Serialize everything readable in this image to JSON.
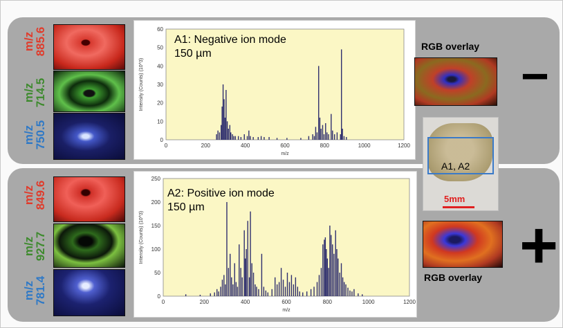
{
  "colors": {
    "red": "#e03c2c",
    "green": "#3e8a2e",
    "blue": "#2f79c6",
    "panel": "#a9a9a9",
    "plot_bg": "#fbf7c5",
    "bar": "#2e2e6e"
  },
  "top": {
    "sign": "−",
    "overlay_label": "RGB overlay",
    "ions": [
      {
        "prefix": "m/z",
        "value": "885.6",
        "color": "red"
      },
      {
        "prefix": "m/z",
        "value": "714.5",
        "color": "green"
      },
      {
        "prefix": "m/z",
        "value": "750.5",
        "color": "blue"
      }
    ],
    "chart_data": {
      "type": "bar",
      "title": "A1: Negative ion mode",
      "subtitle": "150 µm",
      "xlabel": "m/z",
      "ylabel": "Intensity (Counts) (10^3)",
      "xlim": [
        0,
        1200
      ],
      "ylim": [
        0,
        60
      ],
      "xticks": [
        "0",
        "200",
        "400",
        "600",
        "800",
        "1000",
        "1200"
      ],
      "yticks": [
        "0",
        "10",
        "20",
        "30",
        "40",
        "50",
        "60"
      ],
      "peaks": [
        [
          255,
          3
        ],
        [
          262,
          5
        ],
        [
          270,
          4
        ],
        [
          278,
          8
        ],
        [
          283,
          18
        ],
        [
          288,
          30
        ],
        [
          293,
          22
        ],
        [
          298,
          12
        ],
        [
          303,
          27
        ],
        [
          309,
          10
        ],
        [
          315,
          6
        ],
        [
          322,
          8
        ],
        [
          327,
          4
        ],
        [
          335,
          3
        ],
        [
          342,
          2
        ],
        [
          350,
          2
        ],
        [
          365,
          2
        ],
        [
          378,
          1.5
        ],
        [
          395,
          3
        ],
        [
          410,
          2
        ],
        [
          418,
          5
        ],
        [
          425,
          2
        ],
        [
          440,
          1.5
        ],
        [
          465,
          1.5
        ],
        [
          480,
          2
        ],
        [
          495,
          1.5
        ],
        [
          520,
          1.5
        ],
        [
          560,
          1
        ],
        [
          610,
          1
        ],
        [
          680,
          1
        ],
        [
          720,
          2
        ],
        [
          740,
          3
        ],
        [
          748,
          2
        ],
        [
          755,
          7
        ],
        [
          762,
          4
        ],
        [
          770,
          40
        ],
        [
          776,
          12
        ],
        [
          782,
          6
        ],
        [
          790,
          8
        ],
        [
          797,
          3
        ],
        [
          805,
          9
        ],
        [
          812,
          4
        ],
        [
          820,
          3
        ],
        [
          833,
          14
        ],
        [
          840,
          5
        ],
        [
          850,
          3
        ],
        [
          863,
          4
        ],
        [
          880,
          3
        ],
        [
          885,
          49
        ],
        [
          890,
          6
        ],
        [
          898,
          2
        ],
        [
          910,
          1.5
        ]
      ]
    }
  },
  "bottom": {
    "sign": "+",
    "overlay_label": "RGB overlay",
    "ions": [
      {
        "prefix": "m/z",
        "value": "849.6",
        "color": "red"
      },
      {
        "prefix": "m/z",
        "value": "927.7",
        "color": "green"
      },
      {
        "prefix": "m/z",
        "value": "781.4",
        "color": "blue"
      }
    ],
    "chart_data": {
      "type": "bar",
      "title": "A2: Positive ion mode",
      "subtitle": "150 µm",
      "xlabel": "m/z",
      "ylabel": "Intensity (Counts) (10^3)",
      "xlim": [
        0,
        1200
      ],
      "ylim": [
        0,
        250
      ],
      "xticks": [
        "0",
        "200",
        "400",
        "600",
        "800",
        "1000",
        "1200"
      ],
      "yticks": [
        "0",
        "50",
        "100",
        "150",
        "200",
        "250"
      ],
      "peaks": [
        [
          110,
          4
        ],
        [
          180,
          3
        ],
        [
          230,
          6
        ],
        [
          250,
          8
        ],
        [
          262,
          15
        ],
        [
          270,
          10
        ],
        [
          280,
          20
        ],
        [
          288,
          35
        ],
        [
          296,
          45
        ],
        [
          303,
          25
        ],
        [
          310,
          200
        ],
        [
          318,
          60
        ],
        [
          326,
          90
        ],
        [
          333,
          40
        ],
        [
          340,
          25
        ],
        [
          348,
          70
        ],
        [
          355,
          30
        ],
        [
          362,
          20
        ],
        [
          370,
          110
        ],
        [
          378,
          60
        ],
        [
          385,
          40
        ],
        [
          395,
          140
        ],
        [
          400,
          80
        ],
        [
          405,
          100
        ],
        [
          412,
          160
        ],
        [
          420,
          40
        ],
        [
          425,
          180
        ],
        [
          432,
          70
        ],
        [
          440,
          50
        ],
        [
          448,
          25
        ],
        [
          455,
          20
        ],
        [
          465,
          15
        ],
        [
          480,
          90
        ],
        [
          490,
          20
        ],
        [
          500,
          12
        ],
        [
          510,
          8
        ],
        [
          530,
          15
        ],
        [
          545,
          40
        ],
        [
          555,
          25
        ],
        [
          565,
          30
        ],
        [
          575,
          60
        ],
        [
          585,
          35
        ],
        [
          595,
          20
        ],
        [
          605,
          50
        ],
        [
          615,
          30
        ],
        [
          625,
          45
        ],
        [
          635,
          25
        ],
        [
          645,
          40
        ],
        [
          655,
          20
        ],
        [
          665,
          10
        ],
        [
          680,
          8
        ],
        [
          700,
          10
        ],
        [
          720,
          15
        ],
        [
          735,
          20
        ],
        [
          750,
          30
        ],
        [
          760,
          45
        ],
        [
          770,
          60
        ],
        [
          778,
          110
        ],
        [
          785,
          120
        ],
        [
          790,
          125
        ],
        [
          795,
          100
        ],
        [
          800,
          80
        ],
        [
          806,
          60
        ],
        [
          812,
          150
        ],
        [
          818,
          130
        ],
        [
          825,
          110
        ],
        [
          832,
          90
        ],
        [
          840,
          140
        ],
        [
          846,
          100
        ],
        [
          852,
          80
        ],
        [
          860,
          50
        ],
        [
          868,
          70
        ],
        [
          875,
          40
        ],
        [
          882,
          30
        ],
        [
          890,
          25
        ],
        [
          900,
          18
        ],
        [
          910,
          12
        ],
        [
          920,
          10
        ],
        [
          930,
          15
        ],
        [
          950,
          6
        ],
        [
          970,
          4
        ]
      ]
    }
  },
  "photo": {
    "box_label": "A1, A2",
    "scale_label": "5mm"
  }
}
